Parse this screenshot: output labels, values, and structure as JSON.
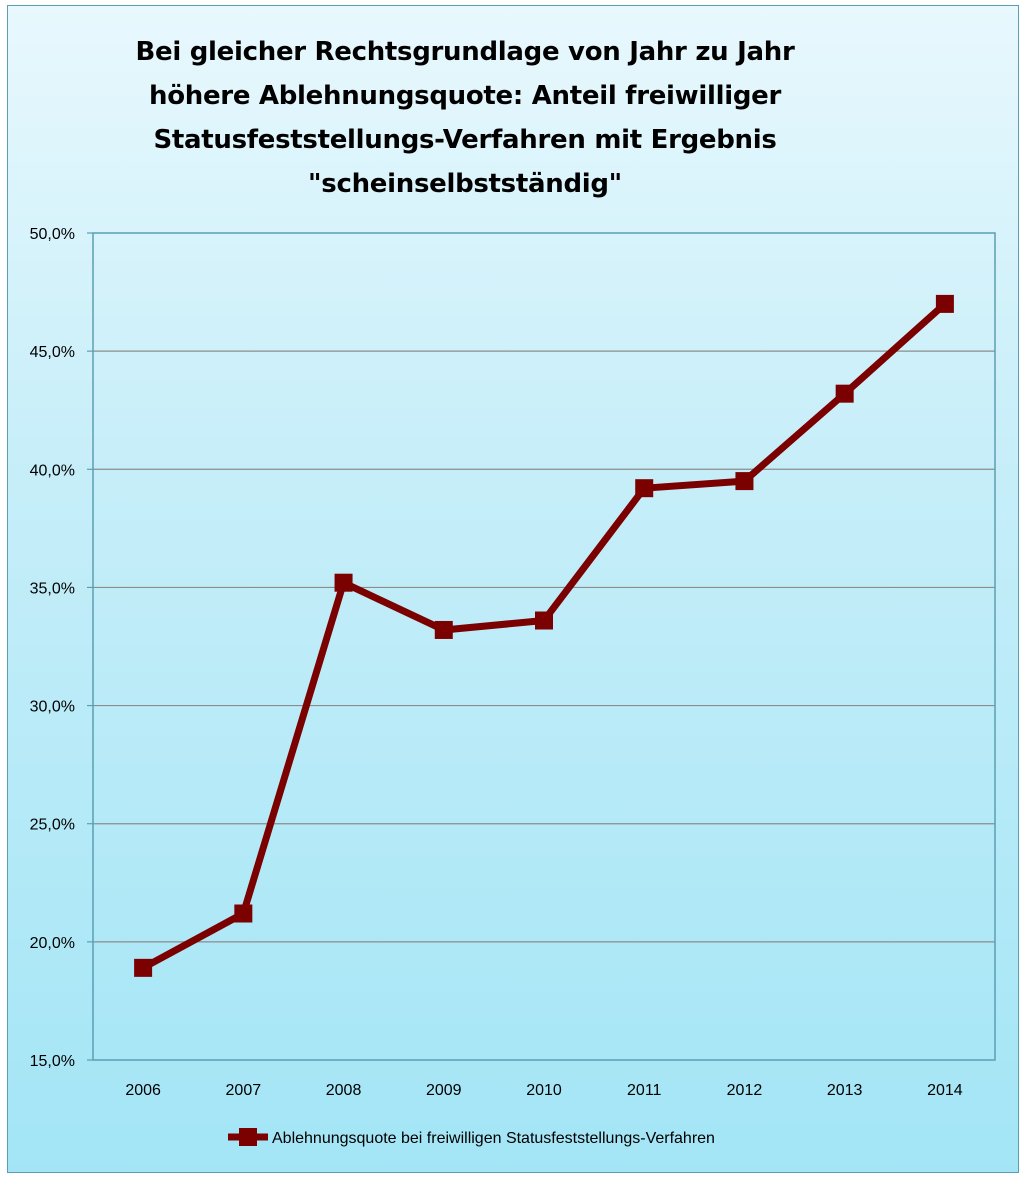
{
  "chart_data": {
    "type": "line",
    "title": "Bei gleicher Rechtsgrundlage von Jahr zu Jahr\nhöhere Ablehnungsquote: Anteil freiwilliger\nStatusfeststellungs-Verfahren mit Ergebnis\n\"scheinselbstständig\"",
    "xlabel": "",
    "ylabel": "",
    "categories": [
      "2006",
      "2007",
      "2008",
      "2009",
      "2010",
      "2011",
      "2012",
      "2013",
      "2014"
    ],
    "series": [
      {
        "name": "Ablehnungsquote bei freiwilligen Statusfeststellungs-Verfahren",
        "values": [
          18.9,
          21.2,
          35.2,
          33.2,
          33.6,
          39.2,
          39.5,
          43.2,
          47.0
        ],
        "color": "#7b0000",
        "marker": "square"
      }
    ],
    "ylim": [
      15,
      50
    ],
    "yticks": [
      "15,0%",
      "20,0%",
      "25,0%",
      "30,0%",
      "35,0%",
      "40,0%",
      "45,0%",
      "50,0%"
    ],
    "ytick_values": [
      15,
      20,
      25,
      30,
      35,
      40,
      45,
      50
    ],
    "grid": true,
    "legend_position": "bottom",
    "colors": {
      "background_top": "#e8f8fd",
      "background_bottom": "#a3e5f6",
      "gridline": "#8c8c8c",
      "axis": "#5a9fb3"
    }
  }
}
